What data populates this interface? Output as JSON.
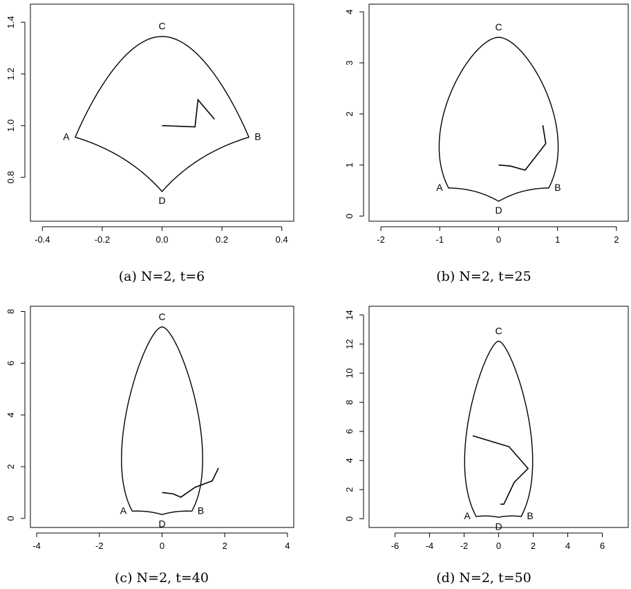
{
  "chart_data": [
    {
      "type": "line",
      "caption": "(a) N=2, t=6",
      "xlim": [
        -0.44,
        0.44
      ],
      "ylim": [
        0.63,
        1.47
      ],
      "xticks": [
        -0.4,
        -0.2,
        0.0,
        0.2,
        0.4
      ],
      "xtick_labels": [
        "-0.4",
        "-0.2",
        "0.0",
        "0.2",
        "0.4"
      ],
      "yticks": [
        0.8,
        1.0,
        1.2,
        1.4
      ],
      "ytick_labels": [
        "0.8",
        "1.0",
        "1.2",
        "1.4"
      ],
      "points": [
        {
          "label": "A",
          "x": -0.29,
          "y": 0.955
        },
        {
          "label": "B",
          "x": 0.29,
          "y": 0.955
        },
        {
          "label": "C",
          "x": 0.0,
          "y": 1.345
        },
        {
          "label": "D",
          "x": 0.0,
          "y": 0.745
        }
      ],
      "boundary": {
        "dir_start": 0.0,
        "top_bulge": 0.2,
        "bottom_bulge": -0.15
      },
      "path": [
        [
          0.0,
          1.0
        ],
        [
          0.11,
          0.995
        ],
        [
          0.12,
          1.1
        ],
        [
          0.175,
          1.025
        ]
      ]
    },
    {
      "type": "line",
      "caption": "(b) N=2, t=25",
      "xlim": [
        -2.2,
        2.2
      ],
      "ylim": [
        -0.1,
        4.15
      ],
      "xticks": [
        -2,
        -1,
        0,
        1,
        2
      ],
      "xtick_labels": [
        "-2",
        "-1",
        "0",
        "1",
        "2"
      ],
      "yticks": [
        0,
        1,
        2,
        3,
        4
      ],
      "ytick_labels": [
        "0",
        "1",
        "2",
        "3",
        "4"
      ],
      "points": [
        {
          "label": "A",
          "x": -0.85,
          "y": 0.55
        },
        {
          "label": "B",
          "x": 0.85,
          "y": 0.55
        },
        {
          "label": "C",
          "x": 0.0,
          "y": 3.5
        },
        {
          "label": "D",
          "x": 0.0,
          "y": 0.29
        }
      ],
      "boundary": {
        "dir_start": 1.6,
        "top_bulge": 0.55,
        "bottom_bulge": -0.15
      },
      "path": [
        [
          0.0,
          1.0
        ],
        [
          0.2,
          0.98
        ],
        [
          0.45,
          0.9
        ],
        [
          0.8,
          1.42
        ],
        [
          0.75,
          1.78
        ]
      ]
    },
    {
      "type": "line",
      "caption": "(c) N=2, t=40",
      "xlim": [
        -4.2,
        4.2
      ],
      "ylim": [
        -0.35,
        8.2
      ],
      "xticks": [
        -4,
        -2,
        0,
        2,
        4
      ],
      "xtick_labels": [
        "-4",
        "-2",
        "0",
        "2",
        "4"
      ],
      "yticks": [
        0,
        2,
        4,
        6,
        8
      ],
      "ytick_labels": [
        "0",
        "2",
        "4",
        "6",
        "8"
      ],
      "points": [
        {
          "label": "A",
          "x": -0.95,
          "y": 0.28
        },
        {
          "label": "B",
          "x": 0.95,
          "y": 0.28
        },
        {
          "label": "C",
          "x": 0.0,
          "y": 7.4
        },
        {
          "label": "D",
          "x": 0.0,
          "y": 0.15
        }
      ],
      "boundary": {
        "dir_start": 3.0,
        "top_bulge": 0.55,
        "bottom_bulge": -0.1
      },
      "path": [
        [
          0.0,
          1.0
        ],
        [
          0.35,
          0.95
        ],
        [
          0.6,
          0.82
        ],
        [
          1.05,
          1.2
        ],
        [
          1.6,
          1.45
        ],
        [
          1.8,
          1.95
        ]
      ]
    },
    {
      "type": "line",
      "caption": "(d) N=2, t=50",
      "xlim": [
        -7.5,
        7.5
      ],
      "ylim": [
        -0.6,
        14.6
      ],
      "xticks": [
        -6,
        -4,
        -2,
        0,
        2,
        4,
        6
      ],
      "xtick_labels": [
        "-6",
        "-4",
        "-2",
        "0",
        "2",
        "4",
        "6"
      ],
      "yticks": [
        0,
        2,
        4,
        6,
        8,
        10,
        12,
        14
      ],
      "ytick_labels": [
        "0",
        "2",
        "4",
        "6",
        "8",
        "10",
        "12",
        "14"
      ],
      "points": [
        {
          "label": "A",
          "x": -1.3,
          "y": 0.15
        },
        {
          "label": "B",
          "x": 1.3,
          "y": 0.15
        },
        {
          "label": "C",
          "x": 0.0,
          "y": 12.2
        },
        {
          "label": "D",
          "x": 0.0,
          "y": 0.1
        }
      ],
      "boundary": {
        "dir_start": 5.5,
        "top_bulge": 0.55,
        "bottom_bulge": -0.1
      },
      "path": [
        [
          0.1,
          1.0
        ],
        [
          0.3,
          1.0
        ],
        [
          0.9,
          2.5
        ],
        [
          1.7,
          3.45
        ],
        [
          0.6,
          4.95
        ],
        [
          -1.5,
          5.7
        ]
      ]
    }
  ]
}
